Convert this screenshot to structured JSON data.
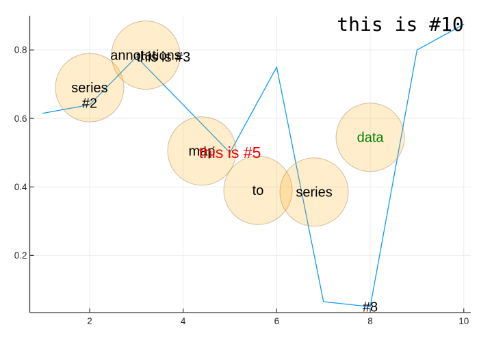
{
  "chart_data": {
    "type": "line",
    "title": "",
    "xlabel": "",
    "ylabel": "",
    "xlim": [
      0.72,
      10.15
    ],
    "ylim": [
      0.033,
      0.9
    ],
    "xticks": [
      2,
      4,
      6,
      8,
      10
    ],
    "xtick_labels": [
      "2",
      "4",
      "6",
      "8",
      "10"
    ],
    "yticks": [
      0.2,
      0.4,
      0.6,
      0.8
    ],
    "ytick_labels": [
      "0.2",
      "0.4",
      "0.6",
      "0.8"
    ],
    "grid": true,
    "legend": "none",
    "series": [
      {
        "name": "line-series",
        "type": "line",
        "color": "#119af5",
        "width": 1.3,
        "x": [
          1,
          2,
          3,
          4,
          5,
          6,
          7,
          8,
          9,
          10
        ],
        "y": [
          0.615,
          0.64,
          0.78,
          0.64,
          0.5,
          0.75,
          0.065,
          0.05,
          0.8,
          0.875
        ]
      },
      {
        "name": "scatter-series",
        "type": "scatter",
        "marker_color": "#ffa500",
        "marker_alpha": 0.2,
        "marker_stroke": "rgba(150,120,70,0.45)",
        "marker_radius_px": 50,
        "x": [
          2.0,
          3.2,
          4.4,
          5.6,
          6.8,
          8.0
        ],
        "y": [
          0.69,
          0.785,
          0.505,
          0.39,
          0.385,
          0.545
        ],
        "label_size": 20,
        "point_labels": [
          {
            "text": "series",
            "color": "#000000"
          },
          {
            "text": "annotations",
            "color": "#000000"
          },
          {
            "text": "map",
            "color": "#000000"
          },
          {
            "text": "to",
            "color": "#000000"
          },
          {
            "text": "series",
            "color": "#000000"
          },
          {
            "text": "data",
            "color": "#008000"
          }
        ]
      }
    ],
    "annotations": [
      {
        "text": "#2",
        "x": 2,
        "y": 0.645,
        "halign": "center",
        "color": "#000000",
        "size": 20,
        "font": "sans"
      },
      {
        "text": "this is #3",
        "x": 3,
        "y": 0.78,
        "halign": "left",
        "color": "#000000",
        "size": 20,
        "font": "sans"
      },
      {
        "text": "this is #5",
        "x": 5,
        "y": 0.5,
        "halign": "center",
        "color": "#f40000",
        "size": 23,
        "font": "sans"
      },
      {
        "text": "#8",
        "x": 8,
        "y": 0.05,
        "halign": "center",
        "color": "#000000",
        "size": 20,
        "font": "sans"
      },
      {
        "text": "this is #10",
        "x": 10,
        "y": 0.875,
        "halign": "right",
        "color": "#000000",
        "size": 28,
        "font": "mono"
      }
    ],
    "style": {
      "background": "#ffffff",
      "grid_color": "#ebedee",
      "spine_color": "#36383a",
      "tick_color": "#36383a",
      "tick_label_color": "#242628",
      "tick_font_size": 13.5
    }
  }
}
